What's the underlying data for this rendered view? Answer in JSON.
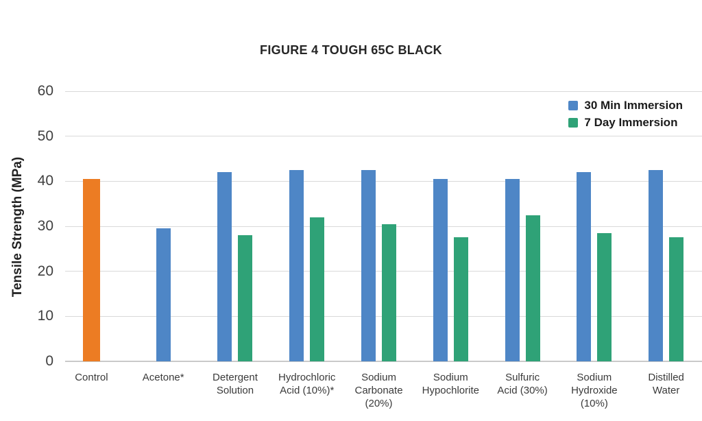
{
  "title": "FIGURE 4 TOUGH 65C BLACK",
  "y_axis": {
    "label": "Tensile Strength (MPa)",
    "ticks": [
      60,
      50,
      40,
      30,
      20,
      10,
      0
    ]
  },
  "x_axis": {
    "label_lines": [
      [
        "Control"
      ],
      [
        "Acetone*"
      ],
      [
        "Detergent",
        "Solution"
      ],
      [
        "Hydrochloric",
        "Acid (10%)*"
      ],
      [
        "Sodium",
        "Carbonate",
        "(20%)"
      ],
      [
        "Sodium",
        "Hypochlorite"
      ],
      [
        "Sulfuric",
        "Acid (30%)"
      ],
      [
        "Sodium",
        "Hydroxide",
        "(10%)"
      ],
      [
        "Distilled",
        "Water"
      ]
    ]
  },
  "legend": [
    {
      "label": "30 Min Immersion",
      "color": "#4E86C6"
    },
    {
      "label": "7 Day Immersion",
      "color": "#2FA277"
    }
  ],
  "colors": {
    "blue_series": "#4E86C6",
    "green_series": "#2FA277",
    "control_bar": "#EC7C23",
    "gridline": "#d9d9d9",
    "baseline": "#c9c9c9"
  },
  "chart_data": {
    "type": "bar",
    "title": "FIGURE 4 TOUGH 65C BLACK",
    "xlabel": "",
    "ylabel": "Tensile Strength (MPa)",
    "ylim": [
      0,
      60
    ],
    "ytick_step": 10,
    "grid": true,
    "legend_position": "top-right",
    "categories": [
      "Control",
      "Acetone*",
      "Detergent Solution",
      "Hydrochloric Acid (10%)*",
      "Sodium Carbonate (20%)",
      "Sodium Hypochlorite",
      "Sulfuric Acid (30%)",
      "Sodium Hydroxide (10%)",
      "Distilled Water"
    ],
    "series": [
      {
        "name": "30 Min Immersion",
        "color": "#4E86C6",
        "color_overrides": {
          "0": "#EC7C23"
        },
        "values": [
          40.5,
          29.5,
          42,
          42.5,
          42.5,
          40.5,
          40.5,
          42,
          42.5
        ]
      },
      {
        "name": "7 Day Immersion",
        "color": "#2FA277",
        "values": [
          null,
          null,
          28,
          32,
          30.5,
          27.5,
          32.5,
          28.5,
          27.5
        ]
      }
    ]
  }
}
